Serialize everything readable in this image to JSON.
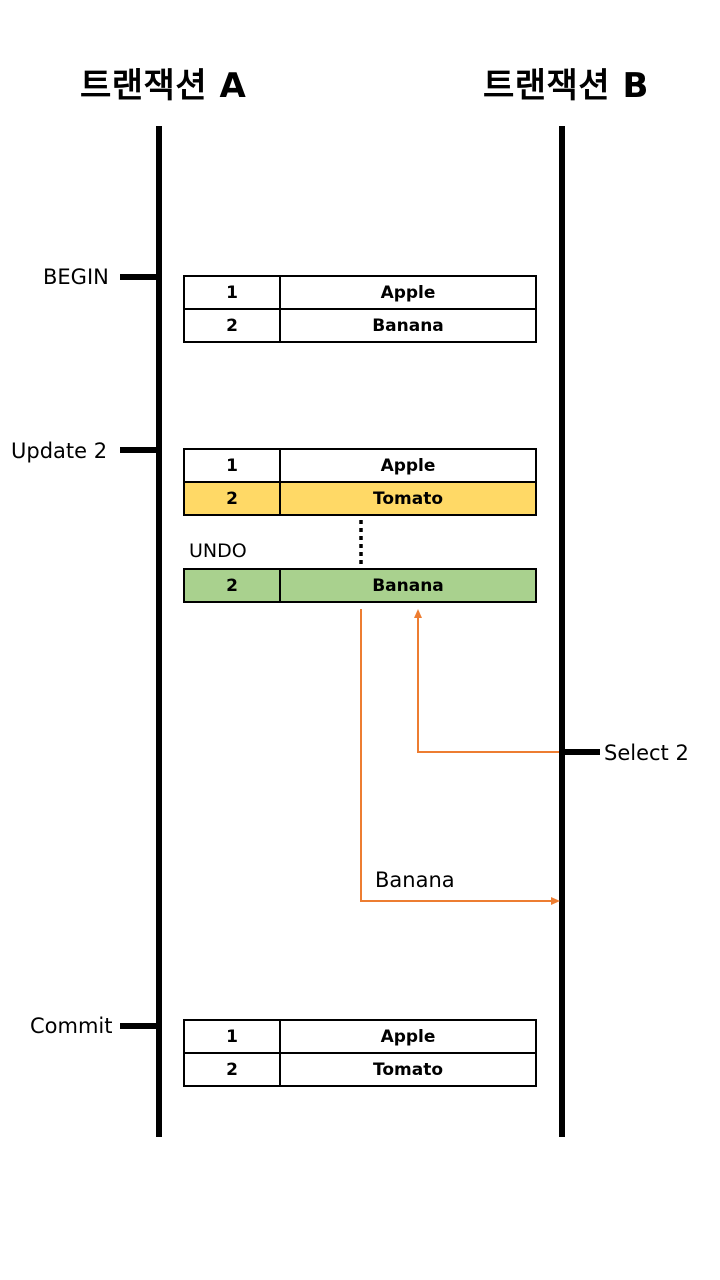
{
  "headers": {
    "a": "트랜잭션 A",
    "b": "트랜잭션 B"
  },
  "events": {
    "begin": "BEGIN",
    "update": "Update 2",
    "undo": "UNDO",
    "select": "Select 2",
    "result": "Banana",
    "commit": "Commit"
  },
  "tables": {
    "begin": [
      {
        "id": "1",
        "value": "Apple"
      },
      {
        "id": "2",
        "value": "Banana"
      }
    ],
    "update": [
      {
        "id": "1",
        "value": "Apple"
      },
      {
        "id": "2",
        "value": "Tomato"
      }
    ],
    "undo": [
      {
        "id": "2",
        "value": "Banana"
      }
    ],
    "commit": [
      {
        "id": "1",
        "value": "Apple"
      },
      {
        "id": "2",
        "value": "Tomato"
      }
    ]
  },
  "colors": {
    "updated_row": "#FFD966",
    "undo_row": "#A9D18E",
    "arrow": "#ED7D31",
    "line": "#000000"
  }
}
